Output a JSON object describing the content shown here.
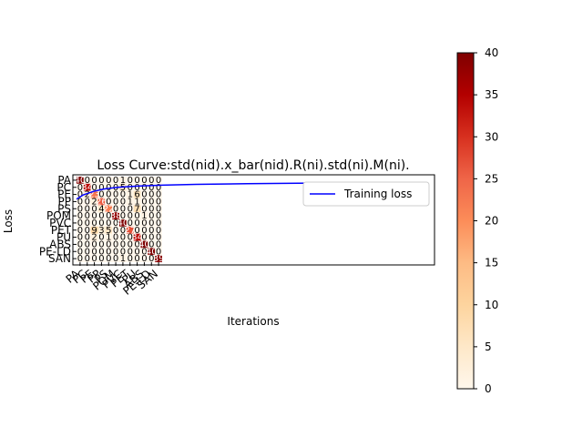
{
  "chart_data": [
    {
      "type": "line",
      "title": "Loss Curve:std(nid).x_bar(nid).R(ni).std(ni).M(ni).",
      "xlabel": "Iterations",
      "ylabel": "Loss",
      "legend": {
        "placement": "top-right",
        "entries": [
          "Training loss"
        ]
      },
      "series": [
        {
          "name": "Training loss",
          "color": "#0000ff",
          "x": [
            0,
            0.02,
            0.05,
            0.08,
            0.12,
            0.18,
            0.25,
            0.35,
            0.5,
            0.65,
            0.8,
            1.0
          ],
          "y": [
            0.35,
            0.5,
            0.62,
            0.7,
            0.76,
            0.8,
            0.83,
            0.86,
            0.88,
            0.9,
            0.91,
            0.91
          ]
        }
      ],
      "xlim": [
        0,
        1
      ],
      "ylim": [
        0,
        1
      ],
      "grid": false
    },
    {
      "type": "heatmap",
      "colormap": "OrRd",
      "colorbar": {
        "ticks": [
          "0",
          "5",
          "10",
          "15",
          "20",
          "25",
          "30",
          "35",
          "40"
        ],
        "range": [
          0,
          40
        ]
      },
      "rows": [
        "PA",
        "PC",
        "PE",
        "PP",
        "PS",
        "POM",
        "PVC",
        "PET",
        "PU",
        "ABS",
        "PE-LD",
        "SAN"
      ],
      "cols": [
        "PA",
        "PC",
        "PE",
        "PP",
        "PS",
        "POM",
        "PVC",
        "PET",
        "PU",
        "ABS",
        "PE-LD",
        "SAN"
      ],
      "values": [
        [
          40,
          0,
          0,
          0,
          0,
          0,
          1,
          0,
          0,
          0,
          0,
          0
        ],
        [
          0,
          34,
          0,
          0,
          0,
          0,
          5,
          0,
          0,
          0,
          0,
          0
        ],
        [
          0,
          2,
          23,
          0,
          0,
          0,
          0,
          1,
          6,
          0,
          0,
          0
        ],
        [
          0,
          0,
          2,
          26,
          0,
          0,
          0,
          1,
          1,
          0,
          0,
          0
        ],
        [
          0,
          0,
          0,
          4,
          22,
          0,
          0,
          0,
          7,
          0,
          0,
          0
        ],
        [
          0,
          0,
          0,
          0,
          0,
          38,
          0,
          0,
          0,
          1,
          0,
          0
        ],
        [
          0,
          0,
          0,
          0,
          0,
          0,
          40,
          0,
          0,
          0,
          0,
          0
        ],
        [
          0,
          0,
          9,
          3,
          5,
          0,
          0,
          27,
          0,
          0,
          0,
          0
        ],
        [
          0,
          0,
          2,
          0,
          1,
          0,
          0,
          0,
          34,
          0,
          0,
          0
        ],
        [
          0,
          0,
          0,
          0,
          0,
          0,
          0,
          0,
          0,
          40,
          0,
          0
        ],
        [
          0,
          0,
          0,
          0,
          0,
          0,
          0,
          0,
          0,
          0,
          40,
          0
        ],
        [
          0,
          0,
          0,
          0,
          0,
          0,
          1,
          0,
          0,
          0,
          0,
          39
        ]
      ]
    }
  ]
}
